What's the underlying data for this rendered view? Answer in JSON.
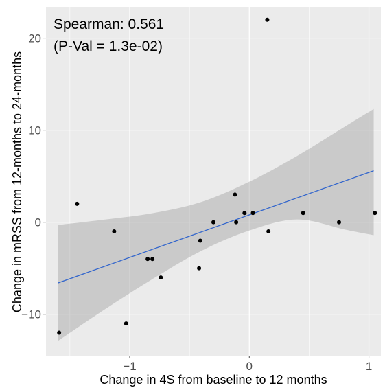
{
  "chart_data": {
    "type": "scatter",
    "title": "",
    "xlabel": "Change in 4S from baseline to 12 months",
    "ylabel": "Change in mRSS from 12-months to 24-months",
    "xlim": [
      -1.7,
      1.1
    ],
    "ylim": [
      -14.5,
      23.4
    ],
    "x_ticks": [
      -1,
      0,
      1
    ],
    "x_tick_labels": [
      "−1",
      "0",
      "1"
    ],
    "y_ticks": [
      -10,
      0,
      10,
      20
    ],
    "y_tick_labels": [
      "−10",
      "0",
      "10",
      "20"
    ],
    "grid": true,
    "background": "#ebebeb",
    "annotations": [
      "Spearman: 0.561",
      "(P-Val = 1.3e-02)"
    ],
    "points": [
      {
        "x": -1.59,
        "y": -12
      },
      {
        "x": -1.44,
        "y": 2
      },
      {
        "x": -1.13,
        "y": -1
      },
      {
        "x": -1.03,
        "y": -11
      },
      {
        "x": -0.85,
        "y": -4
      },
      {
        "x": -0.81,
        "y": -4
      },
      {
        "x": -0.74,
        "y": -6
      },
      {
        "x": -0.42,
        "y": -5
      },
      {
        "x": -0.41,
        "y": -2
      },
      {
        "x": -0.3,
        "y": 0
      },
      {
        "x": -0.12,
        "y": 3
      },
      {
        "x": -0.11,
        "y": 0
      },
      {
        "x": -0.04,
        "y": 1
      },
      {
        "x": 0.03,
        "y": 1
      },
      {
        "x": 0.15,
        "y": 22
      },
      {
        "x": 0.16,
        "y": -1
      },
      {
        "x": 0.45,
        "y": 1
      },
      {
        "x": 0.75,
        "y": 0
      },
      {
        "x": 1.05,
        "y": 1
      }
    ],
    "fit_line": {
      "x": [
        -1.6,
        1.04
      ],
      "y": [
        -6.6,
        5.6
      ],
      "color": "#3366cc"
    },
    "confidence_band": {
      "x": [
        -1.6,
        -1.2,
        -0.8,
        -0.4,
        0,
        0.4,
        0.8,
        1.04
      ],
      "upper": [
        -0.3,
        0.3,
        1.0,
        2.2,
        4.4,
        7.2,
        10.4,
        12.3
      ],
      "lower": [
        -12.9,
        -9.4,
        -6.1,
        -3.1,
        -0.9,
        0.3,
        -0.8,
        -1.4
      ],
      "color": "#999999"
    },
    "point_color": "#000000",
    "panel_color": "#ebebeb",
    "gridline_color": "#ffffff"
  }
}
